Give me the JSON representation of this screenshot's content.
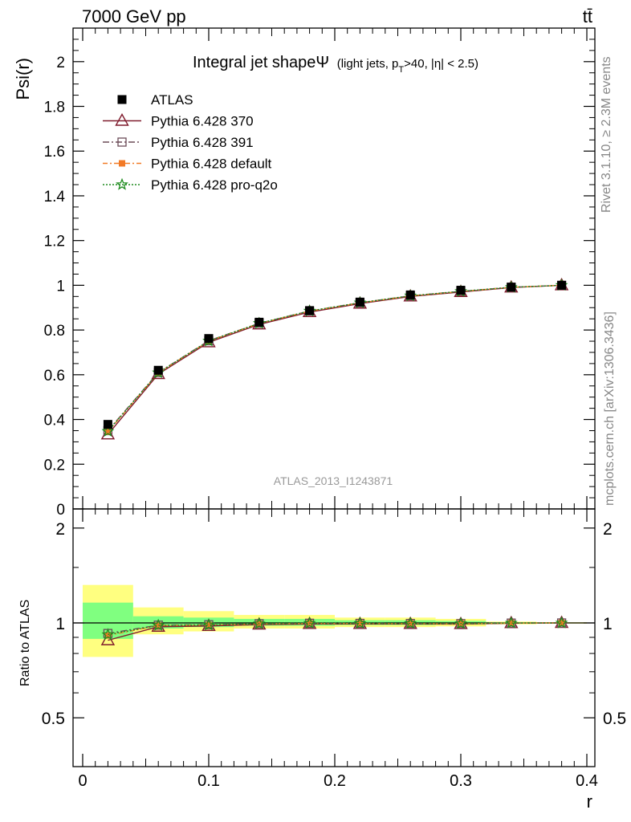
{
  "header": {
    "left": "7000 GeV pp",
    "right": "tt̄"
  },
  "side_labels": {
    "rivet": "Rivet 3.1.10, ≥ 2.3M events",
    "mcplots": "mcplots.cern.ch [arXiv:1306.3436]"
  },
  "analysis_tag": "ATLAS_2013_I1243871",
  "chart_data": {
    "type": "line",
    "title_main": "Integral jet shapeΨ",
    "title_sub": "(light jets, p",
    "title_sub_T": "T",
    "title_sub_rest": ">40, |η| < 2.5)",
    "xlabel": "r",
    "ylabel": "Psi(r)",
    "ratio_ylabel": "Ratio to ATLAS",
    "xlim": [
      0,
      0.4
    ],
    "ylim": [
      0,
      2.15
    ],
    "ratio_ylim": [
      0.35,
      2.3
    ],
    "x_ticks": [
      "0",
      "0.1",
      "0.2",
      "0.3",
      "0.4"
    ],
    "y_ticks": [
      "0",
      "0.2",
      "0.4",
      "0.6",
      "0.8",
      "1",
      "1.2",
      "1.4",
      "1.6",
      "1.8",
      "2"
    ],
    "ratio_ticks": [
      "0.5",
      "1",
      "2"
    ],
    "x": [
      0.02,
      0.06,
      0.1,
      0.14,
      0.18,
      0.22,
      0.26,
      0.3,
      0.34,
      0.38
    ],
    "data": {
      "name": "ATLAS",
      "values": [
        0.378,
        0.62,
        0.762,
        0.835,
        0.887,
        0.925,
        0.957,
        0.978,
        0.992,
        1.0
      ]
    },
    "bands": [
      {
        "x0": 0.0,
        "x1": 0.04,
        "yellow": [
          0.78,
          1.32
        ],
        "green": [
          0.89,
          1.16
        ]
      },
      {
        "x0": 0.04,
        "x1": 0.08,
        "yellow": [
          0.92,
          1.12
        ],
        "green": [
          0.96,
          1.05
        ]
      },
      {
        "x0": 0.08,
        "x1": 0.12,
        "yellow": [
          0.94,
          1.09
        ],
        "green": [
          0.97,
          1.04
        ]
      },
      {
        "x0": 0.12,
        "x1": 0.16,
        "yellow": [
          0.96,
          1.06
        ],
        "green": [
          0.98,
          1.03
        ]
      },
      {
        "x0": 0.16,
        "x1": 0.2,
        "yellow": [
          0.96,
          1.06
        ],
        "green": [
          0.98,
          1.03
        ]
      },
      {
        "x0": 0.2,
        "x1": 0.24,
        "yellow": [
          0.97,
          1.04
        ],
        "green": [
          0.985,
          1.02
        ]
      },
      {
        "x0": 0.24,
        "x1": 0.28,
        "yellow": [
          0.97,
          1.04
        ],
        "green": [
          0.985,
          1.02
        ]
      },
      {
        "x0": 0.28,
        "x1": 0.32,
        "yellow": [
          0.975,
          1.03
        ],
        "green": [
          0.99,
          1.015
        ]
      },
      {
        "x0": 0.32,
        "x1": 0.36,
        "yellow": [
          0.99,
          1.01
        ],
        "green": [
          0.995,
          1.005
        ]
      },
      {
        "x0": 0.36,
        "x1": 0.4,
        "yellow": [
          0.995,
          1.005
        ],
        "green": [
          0.998,
          1.002
        ]
      }
    ],
    "series": [
      {
        "name": "Pythia 6.428 370",
        "color": "#7f1a2c",
        "marker": "triangle-open",
        "dash": "",
        "values": [
          0.333,
          0.603,
          0.745,
          0.825,
          0.88,
          0.918,
          0.95,
          0.97,
          0.99,
          1.0
        ]
      },
      {
        "name": "Pythia 6.428 391",
        "color": "#6b4b57",
        "marker": "square-open",
        "dash": "8,3,2,3",
        "values": [
          0.35,
          0.61,
          0.752,
          0.83,
          0.885,
          0.922,
          0.953,
          0.973,
          0.991,
          1.0
        ]
      },
      {
        "name": "Pythia 6.428 default",
        "color": "#f27a26",
        "marker": "square-filled",
        "dash": "6,3,2,3",
        "values": [
          0.345,
          0.608,
          0.75,
          0.829,
          0.884,
          0.921,
          0.952,
          0.972,
          0.991,
          1.0
        ]
      },
      {
        "name": "Pythia 6.428 pro-q2o",
        "color": "#1e8c1e",
        "marker": "star-open",
        "dash": "2,2",
        "values": [
          0.347,
          0.609,
          0.751,
          0.83,
          0.885,
          0.922,
          0.953,
          0.973,
          0.991,
          1.0
        ]
      }
    ]
  }
}
